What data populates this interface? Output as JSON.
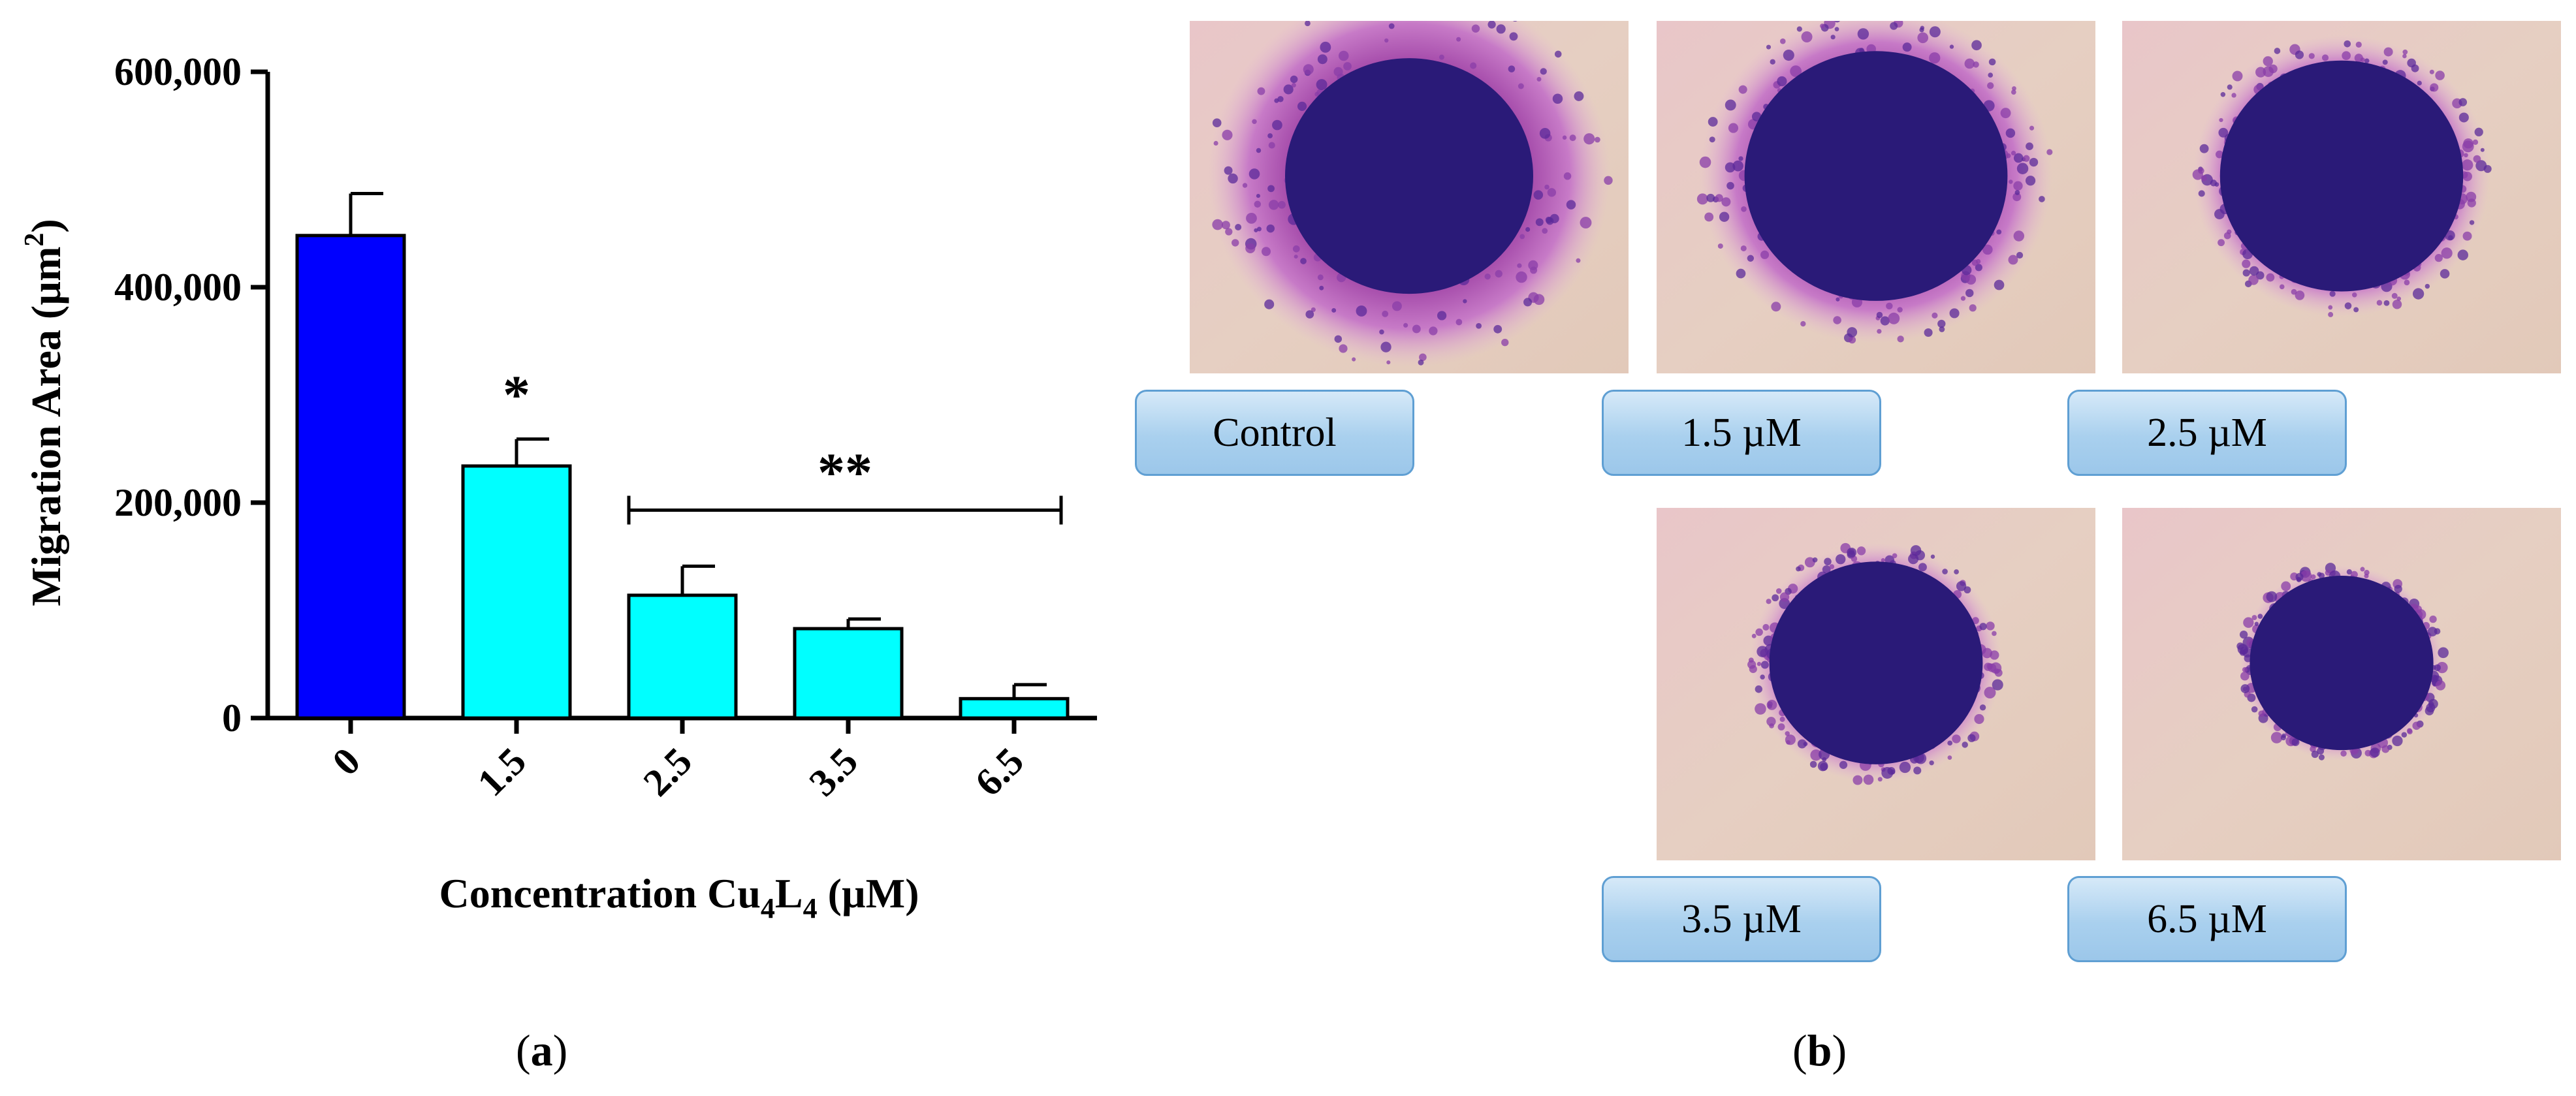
{
  "chart_data": {
    "type": "bar",
    "ylabel": "Migration Area (µm",
    "ylabel_sup": "2",
    "ylabel_close": ")",
    "xlabel_parts": [
      "Concentration Cu",
      "4",
      "L",
      "4",
      " (µM)"
    ],
    "categories": [
      "0",
      "1.5",
      "2.5",
      "3.5",
      "6.5"
    ],
    "values": [
      448000,
      234000,
      114000,
      83000,
      18000
    ],
    "errors": [
      39000,
      25000,
      27000,
      9000,
      13000
    ],
    "ylim": [
      0,
      600000
    ],
    "yticks": [
      0,
      200000,
      400000,
      600000
    ],
    "ytick_labels": [
      "0",
      "200,000",
      "400,000",
      "600,000"
    ],
    "significance": [
      {
        "label": "*",
        "category": "1.5"
      },
      {
        "label": "**",
        "from": "2.5",
        "to": "6.5",
        "bracket_y": 193000
      }
    ],
    "colors": [
      "#0000ff",
      "#00ffff",
      "#00ffff",
      "#00ffff",
      "#00ffff"
    ],
    "grid": false
  },
  "panels": {
    "a": "a",
    "b": "b"
  },
  "micrographs": [
    {
      "label": "Control",
      "spot_scale": 1.0,
      "halo": 1.62
    },
    {
      "label": "1.5 µM",
      "spot_scale": 1.06,
      "halo": 1.34
    },
    {
      "label": "2.5 µM",
      "spot_scale": 0.98,
      "halo": 1.22
    },
    {
      "label": "3.5 µM",
      "spot_scale": 0.86,
      "halo": 1.18
    },
    {
      "label": "6.5 µM",
      "spot_scale": 0.74,
      "halo": 1.12
    }
  ]
}
